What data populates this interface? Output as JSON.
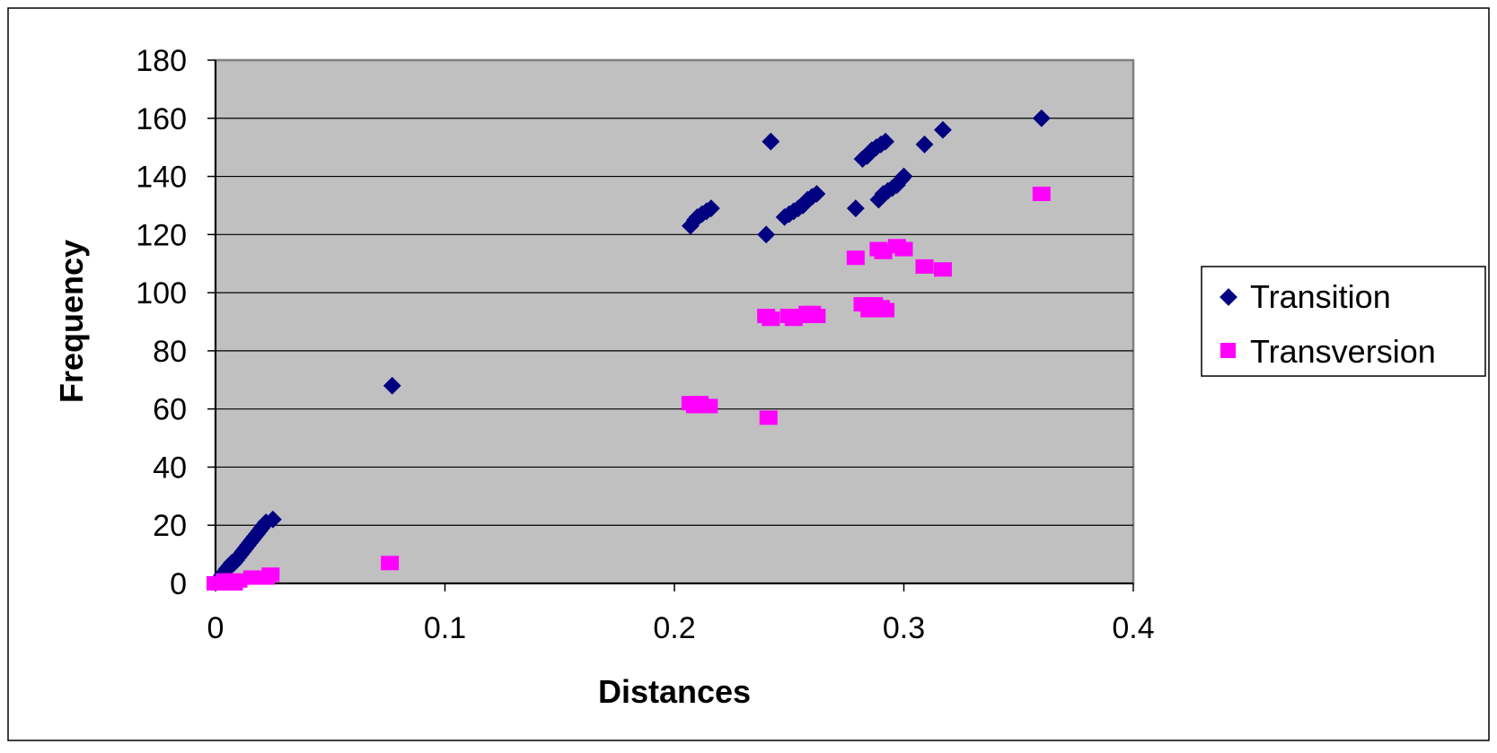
{
  "colors": {
    "plot_background": "#c0c0c0",
    "gridline": "#000000",
    "transition": "#000080",
    "transversion": "#ff00ff"
  },
  "chart_data": {
    "type": "scatter",
    "title": "",
    "xlabel": "Distances",
    "ylabel": "Frequency",
    "xlim": [
      0,
      0.4
    ],
    "ylim": [
      0,
      180
    ],
    "x_ticks": [
      "0",
      "0.1",
      "0.2",
      "0.3",
      "0.4"
    ],
    "y_ticks": [
      "0",
      "20",
      "40",
      "60",
      "80",
      "100",
      "120",
      "140",
      "160",
      "180"
    ],
    "grid": true,
    "legend_position": "right",
    "series": [
      {
        "name": "Transition",
        "marker": "diamond",
        "points": [
          [
            0.001,
            1
          ],
          [
            0.002,
            2
          ],
          [
            0.003,
            3
          ],
          [
            0.004,
            4
          ],
          [
            0.005,
            5
          ],
          [
            0.006,
            6
          ],
          [
            0.007,
            7
          ],
          [
            0.008,
            7
          ],
          [
            0.009,
            8
          ],
          [
            0.01,
            9
          ],
          [
            0.011,
            10
          ],
          [
            0.012,
            11
          ],
          [
            0.013,
            12
          ],
          [
            0.014,
            13
          ],
          [
            0.015,
            14
          ],
          [
            0.016,
            15
          ],
          [
            0.017,
            16
          ],
          [
            0.018,
            17
          ],
          [
            0.019,
            18
          ],
          [
            0.02,
            19
          ],
          [
            0.021,
            20
          ],
          [
            0.022,
            21
          ],
          [
            0.025,
            22
          ],
          [
            0.077,
            68
          ],
          [
            0.207,
            123
          ],
          [
            0.209,
            125
          ],
          [
            0.21,
            126
          ],
          [
            0.212,
            127
          ],
          [
            0.214,
            128
          ],
          [
            0.216,
            129
          ],
          [
            0.24,
            120
          ],
          [
            0.242,
            152
          ],
          [
            0.248,
            126
          ],
          [
            0.25,
            127
          ],
          [
            0.252,
            128
          ],
          [
            0.254,
            129
          ],
          [
            0.256,
            130
          ],
          [
            0.258,
            132
          ],
          [
            0.26,
            133
          ],
          [
            0.262,
            134
          ],
          [
            0.279,
            129
          ],
          [
            0.282,
            146
          ],
          [
            0.284,
            147
          ],
          [
            0.286,
            149
          ],
          [
            0.288,
            150
          ],
          [
            0.29,
            151
          ],
          [
            0.292,
            152
          ],
          [
            0.289,
            132
          ],
          [
            0.291,
            134
          ],
          [
            0.293,
            135
          ],
          [
            0.295,
            136
          ],
          [
            0.297,
            137
          ],
          [
            0.299,
            139
          ],
          [
            0.3,
            140
          ],
          [
            0.309,
            151
          ],
          [
            0.317,
            156
          ],
          [
            0.36,
            160
          ]
        ]
      },
      {
        "name": "Transversion",
        "marker": "square",
        "points": [
          [
            0,
            0
          ],
          [
            0.002,
            0
          ],
          [
            0.004,
            1
          ],
          [
            0.006,
            1
          ],
          [
            0.008,
            0
          ],
          [
            0.01,
            1
          ],
          [
            0.016,
            2
          ],
          [
            0.018,
            2
          ],
          [
            0.02,
            2
          ],
          [
            0.022,
            2
          ],
          [
            0.024,
            3
          ],
          [
            0.076,
            7
          ],
          [
            0.207,
            62
          ],
          [
            0.209,
            61
          ],
          [
            0.211,
            62
          ],
          [
            0.215,
            61
          ],
          [
            0.241,
            57
          ],
          [
            0.24,
            92
          ],
          [
            0.242,
            91
          ],
          [
            0.25,
            92
          ],
          [
            0.252,
            91
          ],
          [
            0.256,
            92
          ],
          [
            0.258,
            93
          ],
          [
            0.26,
            93
          ],
          [
            0.262,
            92
          ],
          [
            0.279,
            112
          ],
          [
            0.282,
            96
          ],
          [
            0.285,
            94
          ],
          [
            0.287,
            96
          ],
          [
            0.29,
            95
          ],
          [
            0.292,
            94
          ],
          [
            0.289,
            115
          ],
          [
            0.291,
            114
          ],
          [
            0.297,
            116
          ],
          [
            0.3,
            115
          ],
          [
            0.309,
            109
          ],
          [
            0.317,
            108
          ],
          [
            0.36,
            134
          ]
        ]
      }
    ]
  }
}
